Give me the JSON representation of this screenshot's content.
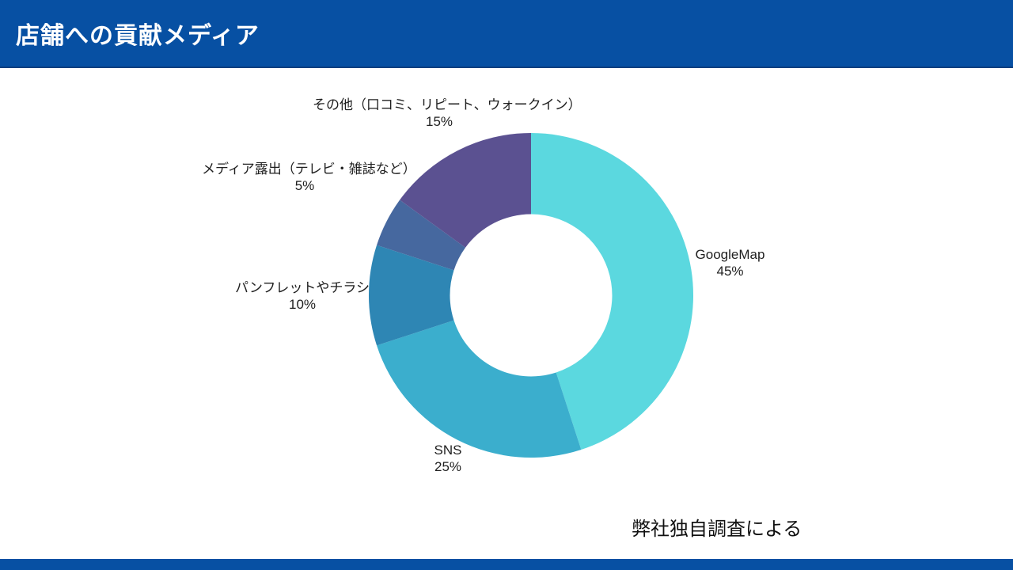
{
  "header": {
    "title": "店舗への貢献メディア",
    "bg": "#0750A3",
    "text_color": "#FFFFFF"
  },
  "chart_data": {
    "type": "pie",
    "title": "店舗への貢献メディア",
    "donut": true,
    "inner_radius_ratio": 0.5,
    "start_angle_deg": 0,
    "direction": "clockwise",
    "legend": "none",
    "segments": [
      {
        "label": "GoogleMap",
        "value": 45,
        "pct": "45%",
        "color": "#5BD8DF"
      },
      {
        "label": "SNS",
        "value": 25,
        "pct": "25%",
        "color": "#3BAECD"
      },
      {
        "label": "パンフレットやチラシ",
        "value": 10,
        "pct": "10%",
        "color": "#2E86B4"
      },
      {
        "label": "メディア露出（テレビ・雑誌など）",
        "value": 5,
        "pct": "5%",
        "color": "#46689F"
      },
      {
        "label": "その他（口コミ、リピート、ウォークイン）",
        "value": 15,
        "pct": "15%",
        "color": "#5B5191"
      }
    ]
  },
  "footnote": "弊社独自調査による"
}
